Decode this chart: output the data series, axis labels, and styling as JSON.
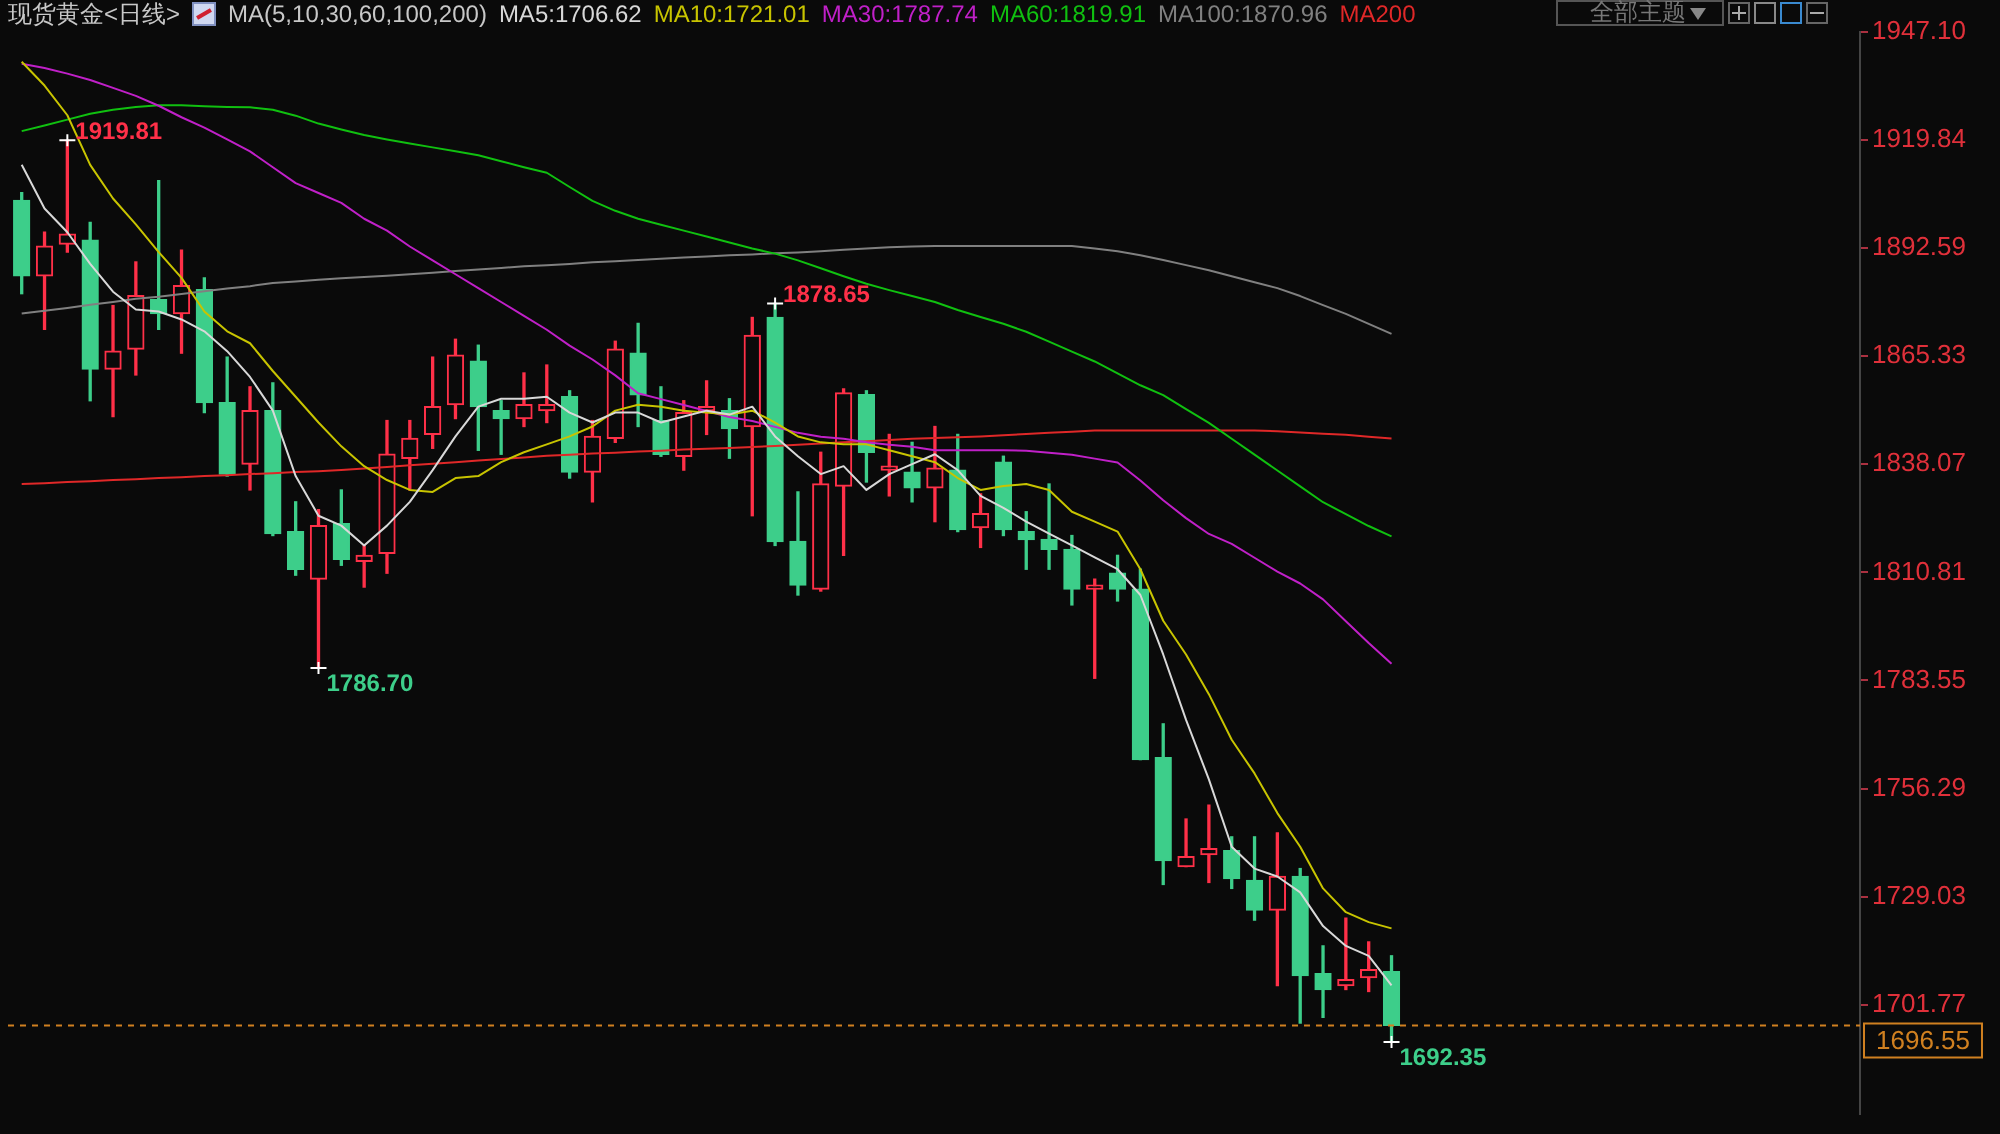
{
  "chart_data": {
    "type": "candlestick",
    "title": "现货黄金<日线>",
    "legend_title": "MA(5,10,30,60,100,200)",
    "legend": "top",
    "marker": "none",
    "grid": false,
    "categories": [
      null,
      null,
      null,
      null,
      null,
      null,
      null,
      null,
      null,
      null,
      null,
      null,
      null,
      null,
      null,
      null,
      null,
      null,
      null,
      null,
      null,
      null,
      null,
      null,
      null,
      null,
      null,
      null,
      null,
      null,
      null,
      null,
      null,
      null,
      null,
      null,
      null,
      null,
      null,
      null,
      null,
      null,
      null,
      null,
      null,
      null,
      null,
      null,
      null,
      null,
      null,
      null,
      null,
      null,
      null,
      null,
      null,
      null,
      null,
      null,
      null
    ],
    "ohlc": [
      [
        1904.6,
        1906.6,
        1881.1,
        1885.6
      ],
      [
        1885.6,
        1896.6,
        1872.1,
        1893.1
      ],
      [
        1893.6,
        1919.81,
        1891.6,
        1896.1
      ],
      [
        1894.6,
        1899.1,
        1854.1,
        1862.1
      ],
      [
        1862.1,
        1878.1,
        1850.1,
        1866.6
      ],
      [
        1867.1,
        1889.1,
        1860.6,
        1880.6
      ],
      [
        1879.6,
        1909.6,
        1872.1,
        1876.1
      ],
      [
        1876.1,
        1892.1,
        1866.1,
        1883.1
      ],
      [
        1882.1,
        1885.1,
        1851.1,
        1853.6
      ],
      [
        1853.6,
        1865.1,
        1835.1,
        1835.6
      ],
      [
        1838.1,
        1857.6,
        1831.6,
        1851.6
      ],
      [
        1851.6,
        1858.6,
        1820.1,
        1820.6
      ],
      [
        1821.1,
        1828.6,
        1810.1,
        1811.6
      ],
      [
        1809.1,
        1826.6,
        1786.7,
        1822.6
      ],
      [
        1823.1,
        1831.6,
        1812.6,
        1814.1
      ],
      [
        1813.6,
        1817.6,
        1807.1,
        1815.1
      ],
      [
        1815.6,
        1849.1,
        1810.6,
        1840.6
      ],
      [
        1839.6,
        1849.1,
        1831.6,
        1844.6
      ],
      [
        1845.6,
        1865.1,
        1842.1,
        1852.6
      ],
      [
        1853.1,
        1869.6,
        1849.6,
        1865.6
      ],
      [
        1864.1,
        1868.1,
        1841.6,
        1852.6
      ],
      [
        1851.6,
        1854.1,
        1840.6,
        1849.6
      ],
      [
        1849.6,
        1861.1,
        1847.6,
        1853.1
      ],
      [
        1851.6,
        1863.1,
        1848.6,
        1853.1
      ],
      [
        1855.1,
        1856.6,
        1834.6,
        1836.1
      ],
      [
        1836.1,
        1849.1,
        1828.6,
        1845.1
      ],
      [
        1844.6,
        1869.1,
        1843.6,
        1867.1
      ],
      [
        1866.1,
        1873.6,
        1847.6,
        1855.6
      ],
      [
        1849.1,
        1857.6,
        1840.1,
        1840.6
      ],
      [
        1840.1,
        1854.1,
        1836.6,
        1851.1
      ],
      [
        1851.6,
        1859.1,
        1845.6,
        1852.6
      ],
      [
        1851.6,
        1854.6,
        1839.6,
        1847.1
      ],
      [
        1847.6,
        1875.1,
        1825.1,
        1870.6
      ],
      [
        1875.1,
        1878.65,
        1817.6,
        1818.6
      ],
      [
        1818.6,
        1831.1,
        1805.1,
        1807.6
      ],
      [
        1806.6,
        1841.1,
        1806.1,
        1833.1
      ],
      [
        1832.6,
        1857.1,
        1815.1,
        1856.1
      ],
      [
        1855.6,
        1856.6,
        1833.6,
        1841.1
      ],
      [
        1836.6,
        1845.6,
        1830.1,
        1837.6
      ],
      [
        1836.1,
        1843.6,
        1828.6,
        1832.1
      ],
      [
        1832.1,
        1847.6,
        1823.6,
        1837.1
      ],
      [
        1836.6,
        1845.6,
        1821.1,
        1821.6
      ],
      [
        1822.1,
        1830.6,
        1817.1,
        1825.6
      ],
      [
        1838.6,
        1840.1,
        1820.1,
        1821.6
      ],
      [
        1821.1,
        1826.1,
        1811.6,
        1819.1
      ],
      [
        1819.1,
        1833.1,
        1811.6,
        1816.6
      ],
      [
        1816.6,
        1820.1,
        1802.6,
        1806.6
      ],
      [
        1806.6,
        1809.1,
        1784.1,
        1807.6
      ],
      [
        1810.6,
        1815.1,
        1803.6,
        1806.6
      ],
      [
        1806.6,
        1811.6,
        1763.6,
        1763.6
      ],
      [
        1764.1,
        1772.6,
        1732.1,
        1738.1
      ],
      [
        1736.6,
        1748.6,
        1736.6,
        1739.1
      ],
      [
        1739.6,
        1752.1,
        1732.6,
        1741.1
      ],
      [
        1740.6,
        1744.1,
        1731.1,
        1733.6
      ],
      [
        1733.1,
        1744.1,
        1723.1,
        1725.6
      ],
      [
        1725.6,
        1745.1,
        1706.6,
        1734.1
      ],
      [
        1734.1,
        1736.1,
        1697.1,
        1709.1
      ],
      [
        1709.6,
        1716.6,
        1698.6,
        1705.6
      ],
      [
        1706.6,
        1723.6,
        1705.6,
        1708.1
      ],
      [
        1708.6,
        1717.6,
        1705.1,
        1710.6
      ],
      [
        1710.1,
        1714.1,
        1692.35,
        1696.55
      ]
    ],
    "colors": [
      "#3dce8a",
      "#ff3048",
      "#ff3048",
      "#3dce8a",
      "#ff3048",
      "#ff3048",
      "#3dce8a",
      "#ff3048",
      "#3dce8a",
      "#3dce8a",
      "#ff3048",
      "#3dce8a",
      "#3dce8a",
      "#ff3048",
      "#3dce8a",
      "#ff3048",
      "#ff3048",
      "#ff3048",
      "#ff3048",
      "#ff3048",
      "#3dce8a",
      "#3dce8a",
      "#ff3048",
      "#ff3048",
      "#3dce8a",
      "#ff3048",
      "#ff3048",
      "#3dce8a",
      "#3dce8a",
      "#ff3048",
      "#ff3048",
      "#3dce8a",
      "#ff3048",
      "#3dce8a",
      "#3dce8a",
      "#ff3048",
      "#ff3048",
      "#3dce8a",
      "#ff3048",
      "#3dce8a",
      "#ff3048",
      "#3dce8a",
      "#ff3048",
      "#3dce8a",
      "#3dce8a",
      "#3dce8a",
      "#3dce8a",
      "#ff3048",
      "#3dce8a",
      "#3dce8a",
      "#3dce8a",
      "#ff3048",
      "#ff3048",
      "#3dce8a",
      "#3dce8a",
      "#ff3048",
      "#3dce8a",
      "#3dce8a",
      "#ff3048",
      "#ff3048",
      "#3dce8a"
    ],
    "series": [
      {
        "name": "MA5:1706.62",
        "type": "line",
        "color": "#d8d8d8",
        "values": [
          1913.6,
          1902.6,
          1896.6,
          1888.6,
          1881.6,
          1877.1,
          1876.6,
          1874.6,
          1871.6,
          1866.6,
          1860.1,
          1851.6,
          1835.1,
          1825.1,
          1822.6,
          1817.6,
          1822.6,
          1828.6,
          1836.6,
          1845.1,
          1852.6,
          1854.6,
          1854.6,
          1855.1,
          1851.1,
          1848.6,
          1851.1,
          1851.1,
          1848.6,
          1850.1,
          1851.6,
          1850.6,
          1852.6,
          1845.1,
          1840.1,
          1835.6,
          1837.6,
          1831.6,
          1835.6,
          1838.1,
          1840.6,
          1836.6,
          1830.1,
          1827.1,
          1823.6,
          1820.6,
          1817.6,
          1814.6,
          1811.6,
          1805.1,
          1790.1,
          1773.6,
          1758.6,
          1741.6,
          1736.1,
          1734.1,
          1730.1,
          1721.6,
          1716.6,
          1714.1,
          1706.62
        ]
      },
      {
        "name": "MA10:1721.01",
        "type": "line",
        "color": "#c8c400",
        "values": [
          1939.6,
          1933.6,
          1926.1,
          1913.6,
          1905.1,
          1898.6,
          1891.6,
          1885.1,
          1876.6,
          1871.6,
          1868.6,
          1861.6,
          1855.1,
          1848.6,
          1842.6,
          1837.6,
          1834.1,
          1831.6,
          1831.1,
          1834.6,
          1835.1,
          1838.6,
          1841.1,
          1843.1,
          1845.1,
          1847.6,
          1851.6,
          1853.1,
          1852.6,
          1851.6,
          1851.1,
          1850.6,
          1851.6,
          1848.6,
          1845.1,
          1843.6,
          1843.1,
          1843.1,
          1841.6,
          1840.1,
          1838.6,
          1834.6,
          1831.6,
          1832.6,
          1833.1,
          1831.6,
          1826.1,
          1823.6,
          1821.1,
          1811.6,
          1798.6,
          1790.1,
          1780.1,
          1768.6,
          1760.1,
          1750.1,
          1741.6,
          1731.1,
          1725.1,
          1722.6,
          1721.01
        ]
      },
      {
        "name": "MA30:1787.74",
        "type": "line",
        "color": "#c020c8",
        "values": [
          1939.1,
          1938,
          1936.6,
          1935,
          1933,
          1931,
          1928.5,
          1925.6,
          1923,
          1920,
          1917,
          1913,
          1909,
          1906.5,
          1904,
          1900,
          1897,
          1893,
          1889.5,
          1886,
          1882.5,
          1879,
          1875.5,
          1872,
          1868,
          1864.5,
          1860.5,
          1856,
          1854.5,
          1853,
          1851.5,
          1850,
          1849,
          1847.5,
          1846,
          1845,
          1844.5,
          1843.6,
          1843,
          1842.5,
          1841.6,
          1841.6,
          1841.6,
          1841.6,
          1841.5,
          1841,
          1840.5,
          1839.5,
          1838.5,
          1834,
          1829,
          1824.5,
          1820.5,
          1818,
          1814.5,
          1811,
          1808,
          1804,
          1798.5,
          1793,
          1787.74
        ]
      },
      {
        "name": "MA60:1819.91",
        "type": "line",
        "color": "#10c010",
        "values": [
          1922.1,
          1923.5,
          1925,
          1926.5,
          1927.5,
          1928.2,
          1928.6,
          1928.6,
          1928.4,
          1928.2,
          1928.1,
          1927.5,
          1926,
          1924,
          1922.5,
          1921.1,
          1920,
          1919,
          1918,
          1917,
          1916,
          1914.5,
          1913,
          1911.6,
          1908,
          1904.5,
          1902,
          1900,
          1898.5,
          1897,
          1895.5,
          1894,
          1892.5,
          1891.2,
          1889.5,
          1887.5,
          1885.5,
          1883.6,
          1882,
          1880.5,
          1879,
          1877,
          1875.2,
          1873.5,
          1871.5,
          1869,
          1866.5,
          1864,
          1861,
          1858,
          1855.5,
          1852,
          1848.5,
          1844.5,
          1840.5,
          1836.5,
          1832.5,
          1828.5,
          1825.5,
          1822.5,
          1819.91
        ]
      },
      {
        "name": "MA100:1870.96",
        "type": "line",
        "color": "#808080",
        "values": [
          1876.1,
          1876.8,
          1877.5,
          1878.3,
          1879,
          1879.8,
          1880.3,
          1881,
          1881.7,
          1882.4,
          1883,
          1883.8,
          1884.2,
          1884.6,
          1885,
          1885.3,
          1885.6,
          1886,
          1886.4,
          1886.8,
          1887.2,
          1887.6,
          1888,
          1888.3,
          1888.6,
          1889,
          1889.3,
          1889.6,
          1889.9,
          1890.2,
          1890.5,
          1890.8,
          1891,
          1891.3,
          1891.5,
          1891.8,
          1892.2,
          1892.5,
          1892.8,
          1893,
          1893.1,
          1893.1,
          1893.1,
          1893.1,
          1893.1,
          1893.1,
          1893.1,
          1892.5,
          1891.8,
          1890.8,
          1889.6,
          1888.3,
          1887,
          1885.5,
          1884,
          1882.5,
          1880.5,
          1878.2,
          1876,
          1873.5,
          1870.96
        ]
      },
      {
        "name": "MA200",
        "type": "line",
        "color": "#e02828",
        "values": [
          1833.1,
          1833.3,
          1833.6,
          1833.8,
          1834.1,
          1834.3,
          1834.6,
          1834.8,
          1835.1,
          1835.3,
          1835.6,
          1835.8,
          1836.1,
          1836.3,
          1836.6,
          1837,
          1837.4,
          1837.8,
          1838.2,
          1838.6,
          1839,
          1839.4,
          1839.8,
          1840.2,
          1840.5,
          1840.8,
          1841,
          1841.3,
          1841.5,
          1841.8,
          1842,
          1842.2,
          1842.4,
          1842.7,
          1843,
          1843.3,
          1843.6,
          1843.9,
          1844.2,
          1844.5,
          1844.7,
          1844.9,
          1845.1,
          1845.4,
          1845.7,
          1846,
          1846.3,
          1846.6,
          1846.6,
          1846.6,
          1846.6,
          1846.6,
          1846.6,
          1846.6,
          1846.6,
          1846.4,
          1846.1,
          1845.8,
          1845.5,
          1845,
          1844.6
        ]
      }
    ],
    "ylim": [
      1674.1,
      1947.1
    ],
    "yticks": [
      {
        "value": 1947.1,
        "label": "1947.10"
      },
      1919.84,
      1892.59,
      1865.33,
      1838.07,
      1810.81,
      1783.55,
      1756.29,
      1729.03,
      1701.77
    ],
    "ref_lines": [
      {
        "axis": "y",
        "value": 1696.55,
        "label": "1696.55",
        "color": "#d08020",
        "line_style": "dashed"
      }
    ],
    "annotations": [
      "1919.81",
      "1878.65",
      "1786.70",
      "1692.35",
      "全部主题"
    ]
  }
}
